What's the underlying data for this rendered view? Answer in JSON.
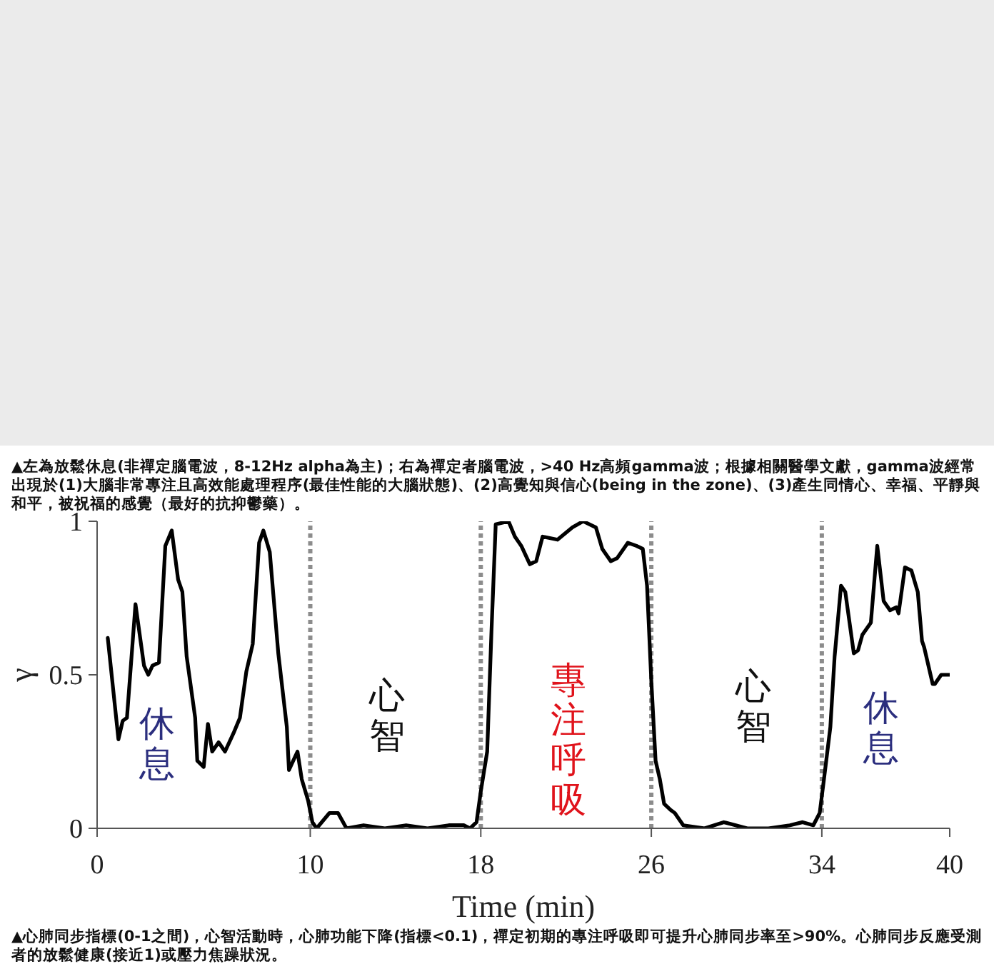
{
  "chart_data": {
    "type": "line",
    "xlabel": "Time (min)",
    "ylabel": "γ",
    "x": [
      0.5,
      1.0,
      1.2,
      1.4,
      1.8,
      2.2,
      2.4,
      2.6,
      2.9,
      3.2,
      3.5,
      3.8,
      4.0,
      4.2,
      4.6,
      4.7,
      5.0,
      5.2,
      5.4,
      5.7,
      6.0,
      6.4,
      6.7,
      7.0,
      7.3,
      7.6,
      7.8,
      8.1,
      8.5,
      8.9,
      9.0,
      9.2,
      9.4,
      9.6,
      9.9,
      10.1,
      10.3,
      10.9,
      11.3,
      11.7,
      12.5,
      13.5,
      14.5,
      15.5,
      16.5,
      17.2,
      17.5,
      17.8,
      18.0,
      18.3,
      18.5,
      18.7,
      19.3,
      19.6,
      19.9,
      20.3,
      20.6,
      20.9,
      21.6,
      22.3,
      22.8,
      23.4,
      23.7,
      24.1,
      24.4,
      24.9,
      25.3,
      25.6,
      25.8,
      26.0,
      26.2,
      26.4,
      26.6,
      26.9,
      27.1,
      27.5,
      28.5,
      29.4,
      30.5,
      31.5,
      32.5,
      33.1,
      33.6,
      33.9,
      34.1,
      34.4,
      34.6,
      34.9,
      35.1,
      35.5,
      35.7,
      35.9,
      36.3,
      36.6,
      36.9,
      37.2,
      37.5,
      37.6,
      37.9,
      38.2,
      38.5,
      38.7,
      38.8,
      39.2,
      39.3,
      39.6,
      40.0
    ],
    "values": [
      0.62,
      0.29,
      0.35,
      0.36,
      0.73,
      0.53,
      0.5,
      0.53,
      0.54,
      0.92,
      0.97,
      0.81,
      0.77,
      0.56,
      0.36,
      0.22,
      0.2,
      0.34,
      0.25,
      0.28,
      0.25,
      0.31,
      0.36,
      0.51,
      0.6,
      0.93,
      0.97,
      0.9,
      0.57,
      0.33,
      0.19,
      0.22,
      0.25,
      0.16,
      0.09,
      0.02,
      0.0,
      0.05,
      0.05,
      0.0,
      0.01,
      0.0,
      0.01,
      0.0,
      0.01,
      0.01,
      0.0,
      0.02,
      0.12,
      0.25,
      0.64,
      0.99,
      1.0,
      0.95,
      0.92,
      0.86,
      0.87,
      0.95,
      0.94,
      0.98,
      1.0,
      0.98,
      0.91,
      0.87,
      0.88,
      0.93,
      0.92,
      0.91,
      0.79,
      0.48,
      0.22,
      0.16,
      0.08,
      0.06,
      0.05,
      0.01,
      0.0,
      0.02,
      0.0,
      0.0,
      0.01,
      0.02,
      0.01,
      0.05,
      0.16,
      0.33,
      0.56,
      0.79,
      0.77,
      0.57,
      0.58,
      0.63,
      0.67,
      0.92,
      0.74,
      0.71,
      0.72,
      0.7,
      0.85,
      0.84,
      0.77,
      0.61,
      0.59,
      0.47,
      0.47,
      0.5,
      0.5
    ],
    "color": "#000000",
    "xlim": [
      0,
      40
    ],
    "xticks": [
      0,
      10,
      18,
      26,
      34,
      40
    ],
    "ylim": [
      0,
      1
    ],
    "yticks": [
      0,
      0.5,
      1
    ],
    "ref_lines": [
      {
        "axis": "x",
        "value": 10,
        "color": "#8c8c8c",
        "line_style": "dotted"
      },
      {
        "axis": "x",
        "value": 18,
        "color": "#8c8c8c",
        "line_style": "dotted"
      },
      {
        "axis": "x",
        "value": 26,
        "color": "#8c8c8c",
        "line_style": "dotted"
      },
      {
        "axis": "x",
        "value": 34,
        "color": "#8c8c8c",
        "line_style": "dotted"
      }
    ],
    "annotations": [
      "▲左為放鬆休息(非禪定腦電波，8-12Hz alpha為主)；右為禪定者腦電波，>40 Hz高頻gamma波；根據相關醫學文獻，gamma波經常出現於(1)大腦非常專注且高效能處理程序(最佳性能的大腦狀態)、(2)高覺知與信心(being in the zone)、(3)產生同情心、幸福、平靜與和平，被祝福的感覺（最好的抗抑鬱藥）。",
      "休息",
      "心智",
      "專注呼吸",
      "心智",
      "休息",
      "▲心肺同步指標(0-1之間)，心智活動時，心肺功能下降(指標<0.1)，禪定初期的專注呼吸即可提升心肺同步率至>90%。心肺同步反應受測者的放鬆健康(接近1)或壓力焦躁狀況。"
    ]
  }
}
